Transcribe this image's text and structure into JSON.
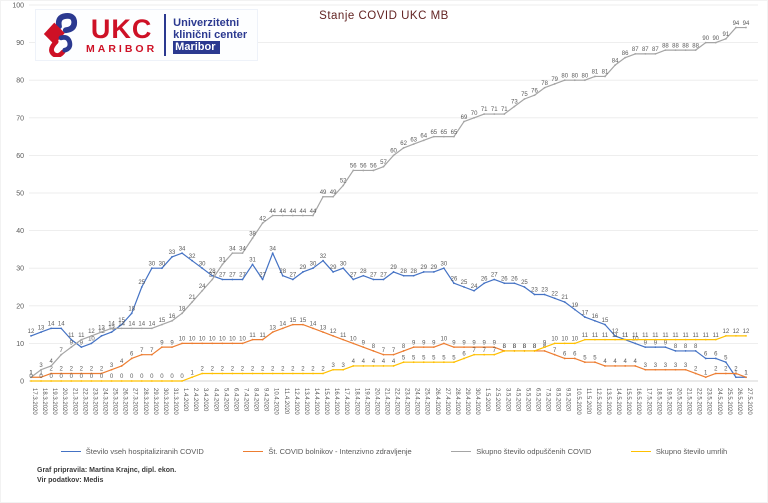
{
  "title": "Stanje COVID UKC MB",
  "logo": {
    "acronym": "UKC",
    "city": "MARIBOR",
    "name_lines": [
      "Univerzitetni",
      "klinični center",
      "Maribor"
    ],
    "red": "#ce1126",
    "blue": "#2b3990"
  },
  "footer": {
    "line1": "Graf pripravila: Martina Krajnc, dipl. ekon.",
    "line2": "Vir podatkov: Medis"
  },
  "chart_data": {
    "type": "line",
    "title": "Stanje COVID UKC MB",
    "xlabel": "",
    "ylabel": "",
    "ylim": [
      0,
      100
    ],
    "ytick_step": 10,
    "grid": true,
    "legend_position": "bottom",
    "label_color": "#595959",
    "x": [
      "17.3.2020",
      "18.3.2020",
      "19.3.2020",
      "20.3.2020",
      "21.3.2020",
      "22.3.2020",
      "23.3.2020",
      "24.3.2020",
      "25.3.2020",
      "26.3.2020",
      "27.3.2020",
      "28.3.2020",
      "29.3.2020",
      "30.3.2020",
      "31.3.2020",
      "1.4.2020",
      "2.4.2020",
      "3.4.2020",
      "4.4.2020",
      "5.4.2020",
      "6.4.2020",
      "7.4.2020",
      "8.4.2020",
      "9.4.2020",
      "10.4.2020",
      "11.4.2020",
      "12.4.2020",
      "13.4.2020",
      "14.4.2020",
      "15.4.2020",
      "16.4.2020",
      "17.4.2020",
      "18.4.2020",
      "19.4.2020",
      "20.4.2020",
      "21.4.2020",
      "22.4.2020",
      "23.4.2020",
      "24.4.2020",
      "25.4.2020",
      "26.4.2020",
      "27.4.2020",
      "28.4.2020",
      "29.4.2020",
      "30.4.2020",
      "1.5.2020",
      "2.5.2020",
      "3.5.2020",
      "4.5.2020",
      "5.5.2020",
      "6.5.2020",
      "7.5.2020",
      "8.5.2020",
      "9.5.2020",
      "10.5.2020",
      "11.5.2020",
      "12.5.2020",
      "13.5.2020",
      "14.5.2020",
      "15.5.2020",
      "16.5.2020",
      "17.5.2020",
      "18.5.2020",
      "19.5.2020",
      "20.5.2020",
      "21.5.2020",
      "22.5.2020",
      "23.5.2020",
      "24.5.2020",
      "25.5.2020",
      "26.5.2020",
      "27.5.2020"
    ],
    "series": [
      {
        "name": "Število vseh hospitaliziranih COVID",
        "color": "#4472c4",
        "values": [
          12,
          13,
          14,
          14,
          11,
          9,
          10,
          12,
          13,
          15,
          18,
          25,
          30,
          30,
          33,
          34,
          32,
          30,
          28,
          27,
          27,
          27,
          31,
          27,
          34,
          28,
          27,
          29,
          30,
          32,
          29,
          30,
          27,
          28,
          27,
          27,
          29,
          28,
          28,
          29,
          29,
          30,
          26,
          25,
          24,
          26,
          27,
          26,
          26,
          25,
          23,
          23,
          22,
          21,
          19,
          17,
          16,
          15,
          12,
          11,
          10,
          9,
          9,
          9,
          8,
          8,
          8,
          6,
          6,
          5,
          1,
          1
        ]
      },
      {
        "name": "Št. COVID bolnikov - Intenzivno zdravljenje",
        "color": "#ed7d31",
        "values": [
          1,
          1,
          2,
          2,
          2,
          2,
          2,
          2,
          3,
          4,
          6,
          7,
          7,
          9,
          9,
          10,
          10,
          10,
          10,
          10,
          10,
          10,
          11,
          11,
          13,
          14,
          15,
          15,
          14,
          13,
          12,
          11,
          10,
          9,
          8,
          7,
          7,
          8,
          9,
          9,
          9,
          10,
          9,
          9,
          9,
          9,
          9,
          8,
          8,
          8,
          8,
          8,
          7,
          6,
          6,
          5,
          5,
          4,
          4,
          4,
          4,
          3,
          3,
          3,
          3,
          3,
          2,
          1,
          2,
          2,
          2,
          1
        ]
      },
      {
        "name": "Skupno število odpuščenih COVID",
        "color": "#a5a5a5",
        "values": [
          1,
          3,
          4,
          7,
          9,
          11,
          12,
          13,
          14,
          14,
          14,
          14,
          14,
          15,
          16,
          18,
          21,
          24,
          27,
          31,
          34,
          34,
          38,
          42,
          44,
          44,
          44,
          44,
          44,
          49,
          49,
          52,
          56,
          56,
          56,
          57,
          60,
          62,
          63,
          64,
          65,
          65,
          65,
          69,
          70,
          71,
          71,
          71,
          73,
          75,
          76,
          78,
          79,
          80,
          80,
          80,
          81,
          81,
          84,
          86,
          87,
          87,
          87,
          88,
          88,
          88,
          88,
          90,
          90,
          91,
          94,
          94
        ]
      },
      {
        "name": "Skupno število umrlih",
        "color": "#ffc000",
        "values": [
          0,
          0,
          0,
          0,
          0,
          0,
          0,
          0,
          0,
          0,
          0,
          0,
          0,
          0,
          0,
          0,
          1,
          2,
          2,
          2,
          2,
          2,
          2,
          2,
          2,
          2,
          2,
          2,
          2,
          2,
          3,
          3,
          4,
          4,
          4,
          4,
          4,
          5,
          5,
          5,
          5,
          5,
          5,
          6,
          7,
          7,
          7,
          8,
          8,
          8,
          8,
          9,
          10,
          10,
          10,
          11,
          11,
          11,
          11,
          11,
          11,
          11,
          11,
          11,
          11,
          11,
          11,
          11,
          11,
          12,
          12,
          12
        ]
      }
    ]
  }
}
